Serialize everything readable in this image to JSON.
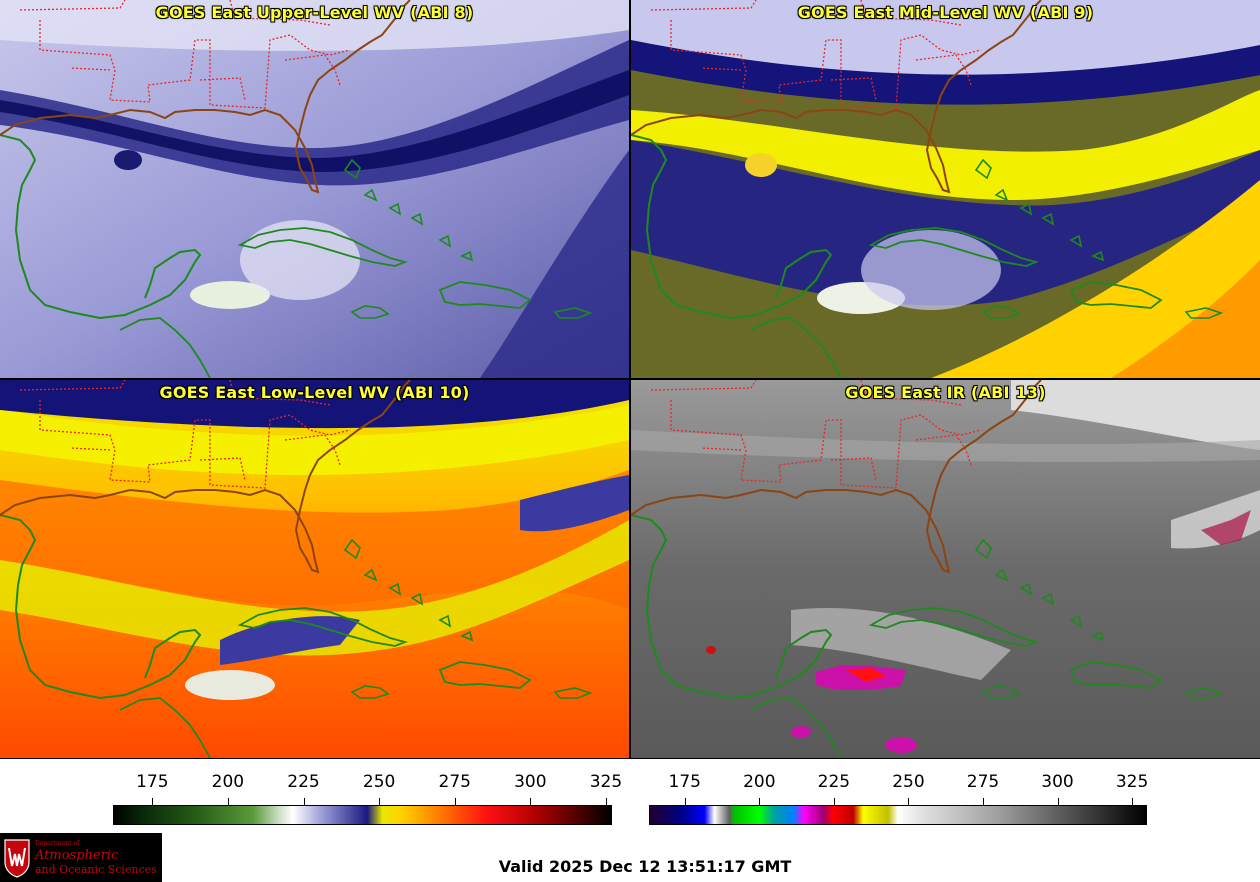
{
  "panels": [
    {
      "title": "GOES East Upper-Level WV (ABI 8)",
      "palette": "wv-upper"
    },
    {
      "title": "GOES East Mid-Level WV (ABI 9)",
      "palette": "wv-mid"
    },
    {
      "title": "GOES East Low-Level WV (ABI 10)",
      "palette": "wv-low"
    },
    {
      "title": "GOES East IR (ABI 13)",
      "palette": "ir"
    }
  ],
  "colorbars": {
    "wv": {
      "ticks": [
        "175",
        "200",
        "225",
        "250",
        "275",
        "300",
        "325"
      ],
      "range": [
        162,
        327
      ]
    },
    "ir": {
      "ticks": [
        "175",
        "200",
        "225",
        "250",
        "275",
        "300",
        "325"
      ],
      "range": [
        163,
        330
      ]
    }
  },
  "colors": {
    "coastline": "#1e8a1e",
    "state_borders": "#e8262a",
    "title_text": "#ffff33"
  },
  "logo": {
    "dept_line": "Department of",
    "line1": "Atmospheric",
    "line2": "and Oceanic Sciences"
  },
  "valid_time": "Valid 2025 Dec 12 13:51:17 GMT"
}
